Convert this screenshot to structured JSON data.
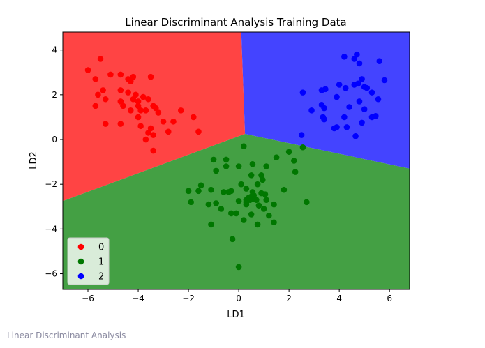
{
  "caption": "Linear Discriminant Analysis",
  "chart_data": {
    "type": "scatter",
    "title": "Linear Discriminant Analysis Training Data",
    "xlabel": "LD1",
    "ylabel": "LD2",
    "xlim": [
      -7.0,
      6.8
    ],
    "ylim": [
      -6.7,
      4.8
    ],
    "xticks": [
      -6,
      -4,
      -2,
      0,
      2,
      4,
      6
    ],
    "yticks": [
      -6,
      -4,
      -2,
      0,
      2,
      4
    ],
    "grid": false,
    "legend": "lower-left",
    "decision_regions": [
      {
        "class": "0",
        "color": "#ff4444",
        "polygon": [
          [
            -7.0,
            -2.75
          ],
          [
            0.25,
            0.25
          ],
          [
            0.1,
            4.8
          ],
          [
            -7.0,
            4.8
          ]
        ]
      },
      {
        "class": "1",
        "color": "#44a044",
        "polygon": [
          [
            -7.0,
            -6.7
          ],
          [
            6.8,
            -6.7
          ],
          [
            6.8,
            -1.3
          ],
          [
            0.25,
            0.25
          ],
          [
            -7.0,
            -2.75
          ]
        ]
      },
      {
        "class": "2",
        "color": "#4444ff",
        "polygon": [
          [
            0.25,
            0.25
          ],
          [
            6.8,
            -1.3
          ],
          [
            6.8,
            4.8
          ],
          [
            0.1,
            4.8
          ]
        ]
      }
    ],
    "series": [
      {
        "name": "0",
        "color": "#ff0000",
        "points": [
          [
            -6.0,
            3.1
          ],
          [
            -5.5,
            3.6
          ],
          [
            -5.7,
            2.7
          ],
          [
            -5.1,
            2.9
          ],
          [
            -4.7,
            2.9
          ],
          [
            -4.4,
            2.7
          ],
          [
            -4.3,
            2.6
          ],
          [
            -4.2,
            2.8
          ],
          [
            -3.5,
            2.8
          ],
          [
            -5.6,
            2.0
          ],
          [
            -5.4,
            2.2
          ],
          [
            -5.7,
            1.5
          ],
          [
            -5.3,
            1.8
          ],
          [
            -4.7,
            2.2
          ],
          [
            -4.4,
            2.1
          ],
          [
            -4.7,
            1.7
          ],
          [
            -4.6,
            1.5
          ],
          [
            -4.2,
            1.8
          ],
          [
            -4.1,
            2.0
          ],
          [
            -4.3,
            1.3
          ],
          [
            -4.0,
            1.5
          ],
          [
            -3.9,
            1.3
          ],
          [
            -3.8,
            1.9
          ],
          [
            -3.7,
            1.3
          ],
          [
            -3.6,
            1.8
          ],
          [
            -3.4,
            1.5
          ],
          [
            -3.3,
            1.4
          ],
          [
            -3.2,
            1.2
          ],
          [
            -4.0,
            1.0
          ],
          [
            -3.5,
            0.5
          ],
          [
            -3.6,
            0.3
          ],
          [
            -3.7,
            0.0
          ],
          [
            -3.4,
            0.2
          ],
          [
            -3.4,
            -0.5
          ],
          [
            -3.0,
            0.8
          ],
          [
            -2.6,
            0.8
          ],
          [
            -2.8,
            0.35
          ],
          [
            -2.3,
            1.3
          ],
          [
            -1.8,
            1.0
          ],
          [
            -1.6,
            0.35
          ],
          [
            -5.3,
            0.7
          ],
          [
            -4.7,
            0.7
          ],
          [
            -3.9,
            0.6
          ],
          [
            -4.0,
            1.7
          ]
        ]
      },
      {
        "name": "1",
        "color": "#007700",
        "points": [
          [
            0.2,
            -0.3
          ],
          [
            -1.0,
            -0.9
          ],
          [
            -0.5,
            -0.9
          ],
          [
            -0.9,
            -1.4
          ],
          [
            -0.5,
            -1.2
          ],
          [
            0.0,
            -1.2
          ],
          [
            0.55,
            -1.1
          ],
          [
            1.1,
            -1.2
          ],
          [
            1.5,
            -0.8
          ],
          [
            2.0,
            -0.55
          ],
          [
            2.55,
            -0.35
          ],
          [
            2.25,
            -1.45
          ],
          [
            2.2,
            -0.95
          ],
          [
            0.5,
            -1.6
          ],
          [
            0.9,
            -1.6
          ],
          [
            0.95,
            -1.8
          ],
          [
            0.75,
            -2.0
          ],
          [
            0.3,
            -2.2
          ],
          [
            0.1,
            -2.0
          ],
          [
            0.55,
            -2.35
          ],
          [
            0.9,
            -2.4
          ],
          [
            1.05,
            -2.45
          ],
          [
            1.8,
            -2.25
          ],
          [
            -1.5,
            -2.05
          ],
          [
            -1.1,
            -2.25
          ],
          [
            -2.0,
            -2.3
          ],
          [
            -1.6,
            -2.3
          ],
          [
            -0.6,
            -2.35
          ],
          [
            -0.4,
            -2.35
          ],
          [
            -0.3,
            -2.3
          ],
          [
            -1.9,
            -2.8
          ],
          [
            -1.2,
            -2.9
          ],
          [
            -0.9,
            -2.85
          ],
          [
            0.3,
            -2.9
          ],
          [
            0.4,
            -2.6
          ],
          [
            0.5,
            -2.55
          ],
          [
            0.6,
            -2.5
          ],
          [
            0.7,
            -2.7
          ],
          [
            1.1,
            -2.7
          ],
          [
            1.4,
            -2.9
          ],
          [
            1.0,
            -3.1
          ],
          [
            1.2,
            -3.4
          ],
          [
            1.4,
            -3.7
          ],
          [
            0.75,
            -3.8
          ],
          [
            0.2,
            -3.6
          ],
          [
            -0.1,
            -3.3
          ],
          [
            -0.7,
            -3.1
          ],
          [
            -0.3,
            -3.3
          ],
          [
            -1.1,
            -3.8
          ],
          [
            0.5,
            -3.35
          ],
          [
            0.0,
            -2.75
          ],
          [
            0.3,
            -2.8
          ],
          [
            0.8,
            -2.95
          ],
          [
            2.7,
            -2.8
          ],
          [
            0.55,
            -2.65
          ],
          [
            -0.25,
            -4.45
          ],
          [
            0.0,
            -5.7
          ],
          [
            0.3,
            -2.7
          ],
          [
            0.45,
            -2.7
          ]
        ]
      },
      {
        "name": "2",
        "color": "#0000ff",
        "points": [
          [
            4.2,
            3.7
          ],
          [
            4.6,
            3.6
          ],
          [
            4.7,
            3.8
          ],
          [
            4.8,
            3.4
          ],
          [
            5.6,
            3.5
          ],
          [
            4.9,
            2.7
          ],
          [
            5.8,
            2.65
          ],
          [
            4.6,
            2.45
          ],
          [
            4.75,
            2.5
          ],
          [
            5.0,
            2.35
          ],
          [
            5.1,
            2.3
          ],
          [
            4.25,
            2.3
          ],
          [
            4.0,
            2.45
          ],
          [
            3.3,
            2.2
          ],
          [
            3.45,
            2.25
          ],
          [
            2.55,
            2.1
          ],
          [
            5.3,
            2.1
          ],
          [
            3.9,
            1.9
          ],
          [
            4.8,
            1.7
          ],
          [
            5.55,
            1.8
          ],
          [
            3.3,
            1.55
          ],
          [
            3.4,
            1.4
          ],
          [
            4.4,
            1.45
          ],
          [
            2.9,
            1.3
          ],
          [
            5.0,
            1.35
          ],
          [
            3.35,
            1.0
          ],
          [
            3.4,
            0.9
          ],
          [
            4.2,
            1.0
          ],
          [
            5.45,
            1.05
          ],
          [
            5.3,
            1.0
          ],
          [
            3.9,
            0.55
          ],
          [
            4.3,
            0.55
          ],
          [
            4.9,
            0.75
          ],
          [
            3.8,
            0.5
          ],
          [
            4.65,
            0.15
          ],
          [
            2.5,
            0.2
          ]
        ]
      }
    ]
  }
}
